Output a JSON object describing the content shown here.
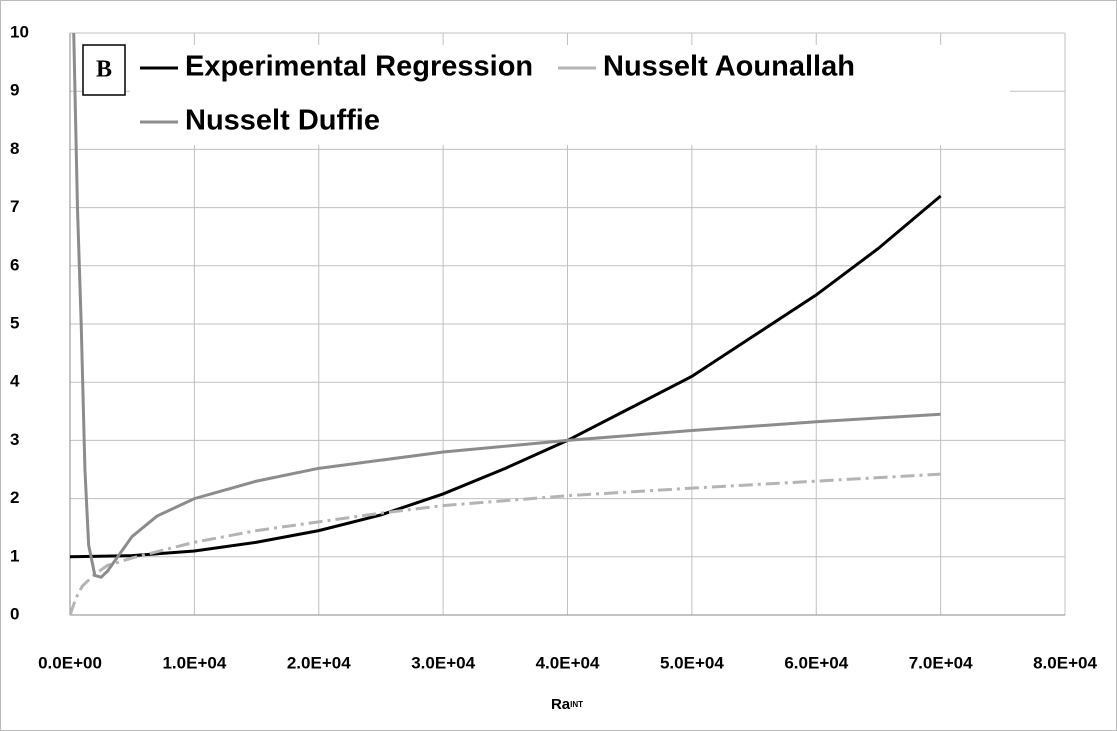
{
  "chart_data": {
    "type": "line",
    "panel_label": "B",
    "x_label": {
      "main": "Ra",
      "sub": "INT"
    },
    "xlim": [
      0,
      80000
    ],
    "ylim": [
      0,
      10
    ],
    "xticks": [
      {
        "value": 0,
        "label": "0.0E+00"
      },
      {
        "value": 10000,
        "label": "1.0E+04"
      },
      {
        "value": 20000,
        "label": "2.0E+04"
      },
      {
        "value": 30000,
        "label": "3.0E+04"
      },
      {
        "value": 40000,
        "label": "4.0E+04"
      },
      {
        "value": 50000,
        "label": "5.0E+04"
      },
      {
        "value": 60000,
        "label": "6.0E+04"
      },
      {
        "value": 70000,
        "label": "7.0E+04"
      },
      {
        "value": 80000,
        "label": "8.0E+04"
      }
    ],
    "yticks": [
      0,
      1,
      2,
      3,
      4,
      5,
      6,
      7,
      8,
      9,
      10
    ],
    "grid": true,
    "legend": "top",
    "series": [
      {
        "name": "Experimental Regression",
        "color": "#000000",
        "dash": "solid",
        "x": [
          0,
          5000,
          10000,
          15000,
          20000,
          25000,
          30000,
          35000,
          40000,
          45000,
          50000,
          55000,
          60000,
          65000,
          70000
        ],
        "values": [
          1.0,
          1.02,
          1.1,
          1.25,
          1.45,
          1.72,
          2.08,
          2.52,
          3.0,
          3.55,
          4.1,
          4.8,
          5.5,
          6.3,
          7.2
        ]
      },
      {
        "name": "Nusselt Aounallah",
        "color": "#b4b4b4",
        "dash": "dashdot",
        "x": [
          0,
          500,
          1000,
          2000,
          3000,
          5000,
          10000,
          15000,
          20000,
          25000,
          30000,
          40000,
          50000,
          60000,
          70000
        ],
        "values": [
          0,
          0.3,
          0.5,
          0.7,
          0.85,
          0.98,
          1.25,
          1.45,
          1.6,
          1.75,
          1.88,
          2.05,
          2.18,
          2.3,
          2.42
        ]
      },
      {
        "name": "Nusselt Duffie",
        "color": "#8c8c8c",
        "dash": "solid",
        "x": [
          300,
          600,
          900,
          1200,
          1500,
          2000,
          2500,
          3000,
          4000,
          5000,
          7000,
          10000,
          15000,
          20000,
          30000,
          40000,
          50000,
          60000,
          70000
        ],
        "values": [
          10,
          7,
          5,
          2.5,
          1.2,
          0.68,
          0.65,
          0.75,
          1.05,
          1.35,
          1.7,
          2.0,
          2.3,
          2.52,
          2.8,
          3.0,
          3.17,
          3.32,
          3.45
        ]
      }
    ]
  }
}
